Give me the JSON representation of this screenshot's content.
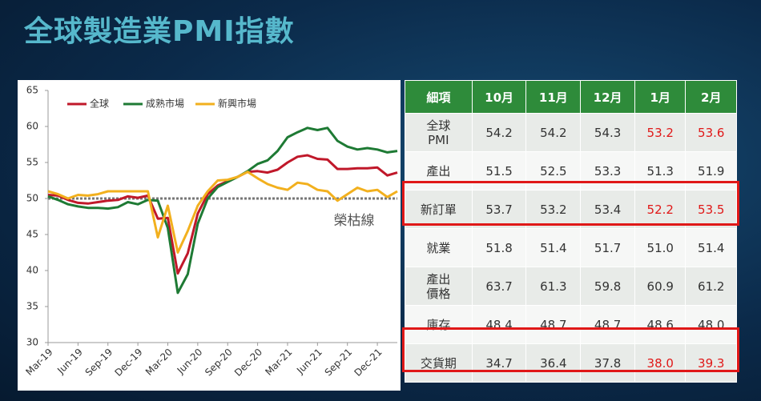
{
  "title": "全球製造業PMI指數",
  "chart_data": {
    "type": "line",
    "categories": [
      "Mar-19",
      null,
      null,
      "Jun-19",
      null,
      null,
      "Sep-19",
      null,
      null,
      "Dec-19",
      null,
      null,
      "Mar-20",
      null,
      null,
      "Jun-20",
      null,
      null,
      "Sep-20",
      null,
      null,
      "Dec-20",
      null,
      null,
      "Mar-21",
      null,
      null,
      "Jun-21",
      null,
      null,
      "Sep-21",
      null,
      null,
      "Dec-21",
      null,
      null
    ],
    "series": [
      {
        "name": "全球",
        "color": "#c0182a",
        "values": [
          50.5,
          50.4,
          49.8,
          49.4,
          49.3,
          49.5,
          49.7,
          49.8,
          50.3,
          50.1,
          50.4,
          47.2,
          47.3,
          39.6,
          42.4,
          47.9,
          50.6,
          51.8,
          52.4,
          53.0,
          53.7,
          53.8,
          53.6,
          54.0,
          55.0,
          55.8,
          56.0,
          55.5,
          55.4,
          54.1,
          54.1,
          54.2,
          54.2,
          54.3,
          53.2,
          53.6
        ]
      },
      {
        "name": "成熟市場",
        "color": "#1e7a34",
        "values": [
          50.3,
          49.8,
          49.2,
          48.9,
          48.7,
          48.7,
          48.6,
          48.8,
          49.5,
          49.2,
          49.8,
          49.7,
          45.9,
          36.9,
          39.5,
          46.5,
          50.0,
          51.6,
          52.3,
          53.0,
          53.8,
          54.8,
          55.3,
          56.6,
          58.5,
          59.2,
          59.8,
          59.5,
          59.8,
          58.0,
          57.2,
          56.8,
          57.0,
          56.8,
          56.4,
          56.6
        ]
      },
      {
        "name": "新興市場",
        "color": "#f2b01e",
        "values": [
          51.0,
          50.6,
          50.0,
          50.5,
          50.4,
          50.6,
          51.0,
          51.0,
          51.0,
          51.0,
          51.0,
          44.6,
          49.0,
          42.5,
          45.5,
          49.0,
          51.0,
          52.5,
          52.6,
          53.0,
          53.7,
          52.8,
          52.0,
          51.5,
          51.2,
          52.2,
          52.0,
          51.2,
          51.0,
          49.7,
          50.6,
          51.5,
          51.0,
          51.2,
          50.2,
          51.0
        ]
      }
    ],
    "ylim": [
      30,
      65
    ],
    "yticks": [
      30,
      35,
      40,
      45,
      50,
      55,
      60,
      65
    ],
    "reference_line": {
      "value": 50,
      "label": "榮枯線",
      "color": "#777"
    }
  },
  "table": {
    "header": [
      "細項",
      "10月",
      "11月",
      "12月",
      "1月",
      "2月"
    ],
    "rows": [
      [
        "全球\nPMI",
        "54.2",
        "54.2",
        "54.3",
        "53.2",
        "53.6"
      ],
      [
        "產出",
        "51.5",
        "52.5",
        "53.3",
        "51.3",
        "51.9"
      ],
      [
        "新訂單",
        "53.7",
        "53.2",
        "53.4",
        "52.2",
        "53.5"
      ],
      [
        "就業",
        "51.8",
        "51.4",
        "51.7",
        "51.0",
        "51.4"
      ],
      [
        "產出\n價格",
        "63.7",
        "61.3",
        "59.8",
        "60.9",
        "61.2"
      ],
      [
        "庫存",
        "48.4",
        "48.7",
        "48.7",
        "48.6",
        "48.0"
      ],
      [
        "交貨期",
        "34.7",
        "36.4",
        "37.8",
        "38.0",
        "39.3"
      ]
    ]
  }
}
